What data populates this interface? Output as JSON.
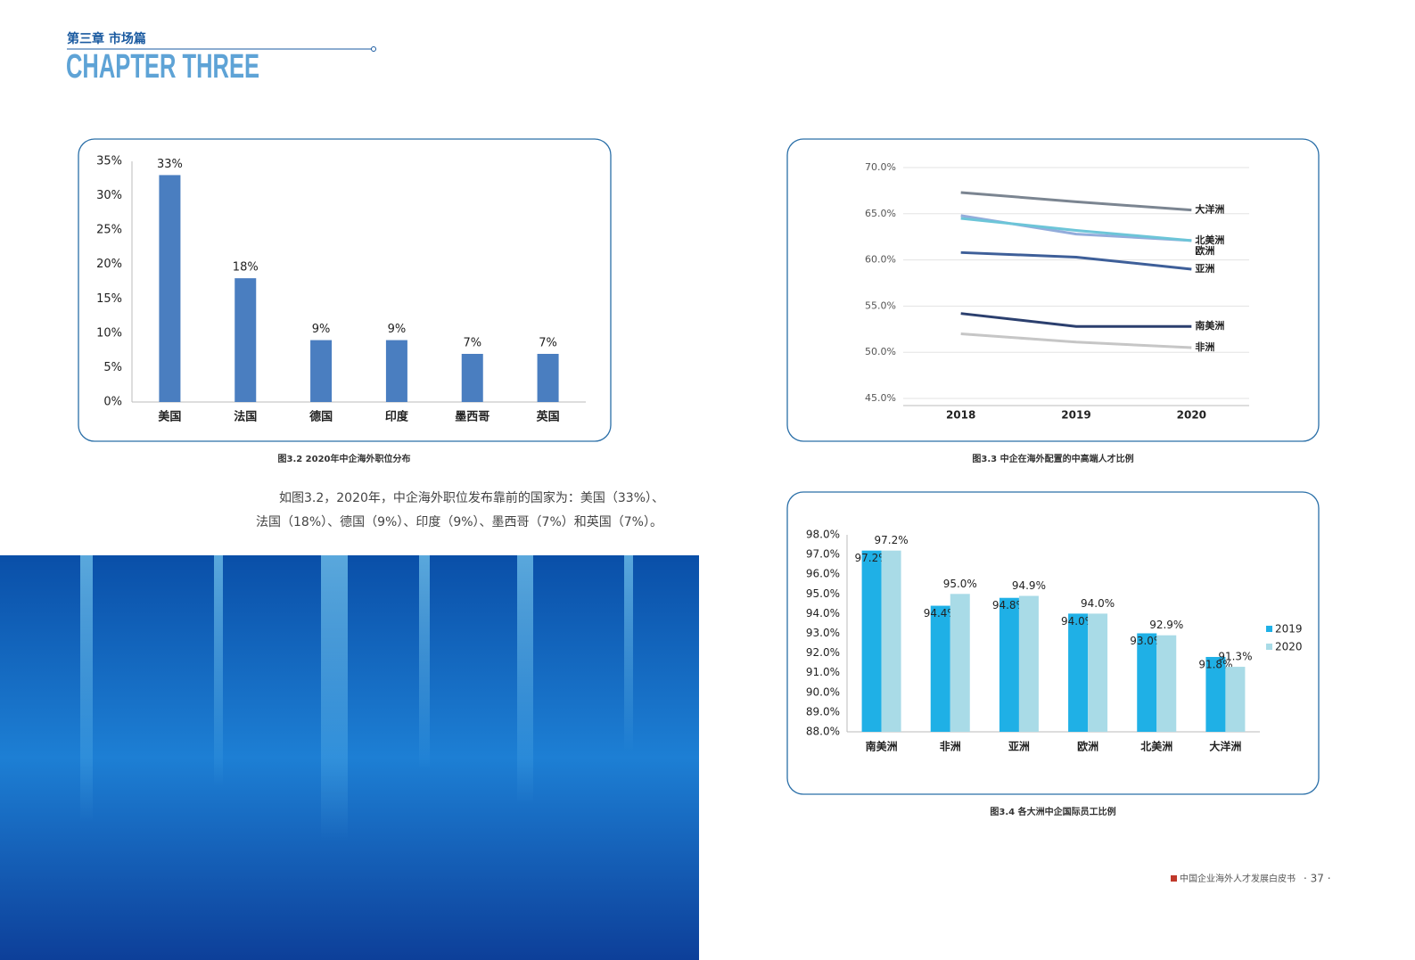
{
  "header": {
    "chapter": "第三章 市场篇",
    "title": "CHAPTER THREE"
  },
  "chart_data": [
    {
      "type": "bar",
      "title": "图3.2  2020年中企海外职位分布",
      "categories": [
        "美国",
        "法国",
        "德国",
        "印度",
        "墨西哥",
        "英国"
      ],
      "values": [
        33,
        18,
        9,
        9,
        7,
        7
      ],
      "value_labels": [
        "33%",
        "18%",
        "9%",
        "9%",
        "7%",
        "7%"
      ],
      "color": "#4a7ec0",
      "ylim": [
        0,
        35
      ],
      "yticks": [
        {
          "value": 0,
          "label": "0%"
        },
        {
          "value": 5,
          "label": "5%"
        },
        {
          "value": 10,
          "label": "10%"
        },
        {
          "value": 15,
          "label": "15%"
        },
        {
          "value": 20,
          "label": "20%"
        },
        {
          "value": 25,
          "label": "25%"
        },
        {
          "value": 30,
          "label": "30%"
        },
        {
          "value": 35,
          "label": "35%"
        }
      ]
    },
    {
      "type": "line",
      "title": "图3.3   中企在海外配置的中高端人才比例",
      "categories": [
        "2018",
        "2019",
        "2020"
      ],
      "series": [
        {
          "name": "大洋洲",
          "color": "#7b8591",
          "values": [
            67.3,
            66.3,
            65.4
          ]
        },
        {
          "name": "北美洲",
          "color": "#93acdb",
          "values": [
            64.8,
            62.8,
            62.1
          ]
        },
        {
          "name": "欧洲",
          "color": "#6cc5d8",
          "values": [
            64.5,
            63.2,
            62.1
          ]
        },
        {
          "name": "亚洲",
          "color": "#3e5f99",
          "values": [
            60.8,
            60.3,
            59.0
          ]
        },
        {
          "name": "南美洲",
          "color": "#2b3f6e",
          "values": [
            54.2,
            52.8,
            52.8
          ]
        },
        {
          "name": "非洲",
          "color": "#c6c6c6",
          "values": [
            52.0,
            51.1,
            50.5
          ]
        }
      ],
      "ylim": [
        45,
        70
      ],
      "yticks": [
        {
          "value": 45,
          "label": "45.0%"
        },
        {
          "value": 50,
          "label": "50.0%"
        },
        {
          "value": 55,
          "label": "55.0%"
        },
        {
          "value": 60,
          "label": "60.0%"
        },
        {
          "value": 65,
          "label": "65.0%"
        },
        {
          "value": 70,
          "label": "70.0%"
        }
      ],
      "grid": true
    },
    {
      "type": "grouped-bar",
      "title": "图3.4  各大洲中企国际员工比例",
      "categories": [
        "南美洲",
        "非洲",
        "亚洲",
        "欧洲",
        "北美洲",
        "大洋洲"
      ],
      "series": [
        {
          "name": "2019",
          "color": "#1fb0e6",
          "values": [
            97.2,
            94.4,
            94.8,
            94.0,
            93.0,
            91.8
          ],
          "value_labels": [
            "97.2%",
            "94.4%",
            "94.8%",
            "94.0%",
            "93.0%",
            "91.8%"
          ]
        },
        {
          "name": "2020",
          "color": "#a9dbe7",
          "values": [
            97.2,
            95.0,
            94.9,
            94.0,
            92.9,
            91.3
          ],
          "value_labels": [
            "97.2%",
            "95.0%",
            "94.9%",
            "94.0%",
            "92.9%",
            "91.3%"
          ]
        }
      ],
      "ylim": [
        88,
        98
      ],
      "yticks": [
        {
          "value": 88,
          "label": "88.0%"
        },
        {
          "value": 89,
          "label": "89.0%"
        },
        {
          "value": 90,
          "label": "90.0%"
        },
        {
          "value": 91,
          "label": "91.0%"
        },
        {
          "value": 92,
          "label": "92.0%"
        },
        {
          "value": 93,
          "label": "93.0%"
        },
        {
          "value": 94,
          "label": "94.0%"
        },
        {
          "value": 95,
          "label": "95.0%"
        },
        {
          "value": 96,
          "label": "96.0%"
        },
        {
          "value": 97,
          "label": "97.0%"
        },
        {
          "value": 98,
          "label": "98.0%"
        }
      ],
      "legend": "right"
    }
  ],
  "body": {
    "lines": [
      "如图3.2，2020年，中企海外职位发布靠前的国家为：美国（33%）、",
      "法国（18%）、德国（9%）、印度（9%）、墨西哥（7%）和英国（7%）。"
    ]
  },
  "footer": {
    "publication": "中国企业海外人才发展白皮书",
    "page": "· 37 ·"
  }
}
